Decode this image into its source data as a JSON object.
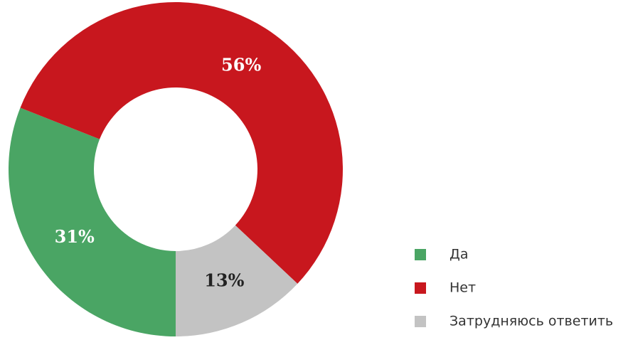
{
  "chart_data": {
    "type": "pie",
    "donut": true,
    "categories": [
      "Да",
      "Нет",
      "Затрудняюсь ответить"
    ],
    "values": [
      31,
      56,
      13
    ],
    "value_labels": [
      "31%",
      "56%",
      "13%"
    ],
    "colors": [
      "#4aa564",
      "#c8171e",
      "#c3c3c3"
    ]
  }
}
